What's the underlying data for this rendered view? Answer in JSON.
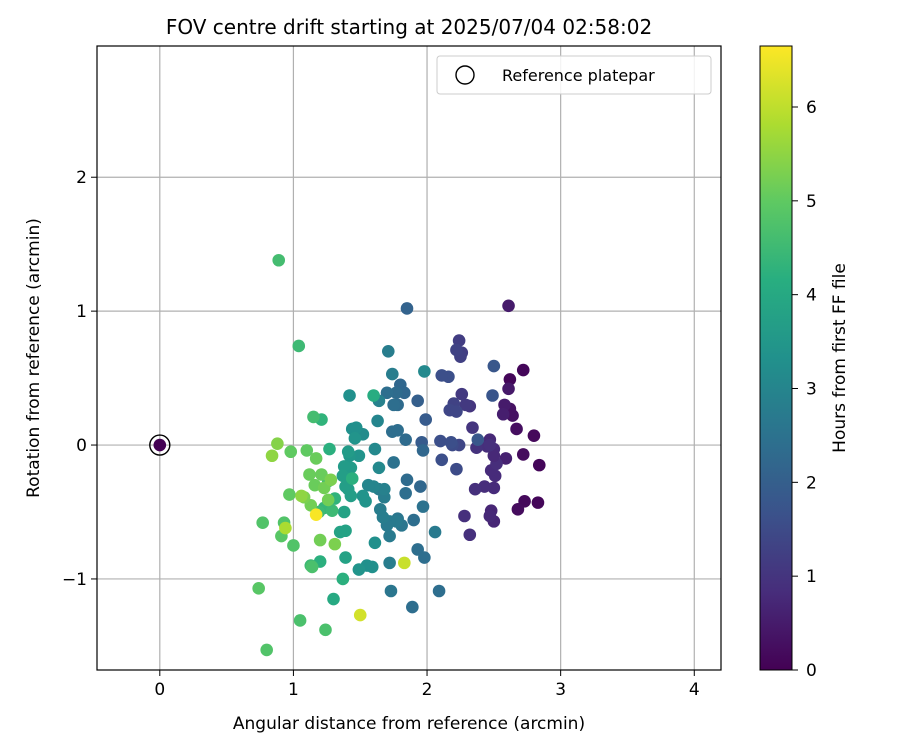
{
  "chart_data": {
    "type": "scatter",
    "title": "FOV centre drift starting at 2025/07/04 02:58:02",
    "xlabel": "Angular distance from reference (arcmin)",
    "ylabel": "Rotation from reference (arcmin)",
    "xlim": [
      -0.47,
      4.2
    ],
    "ylim": [
      -1.68,
      2.98
    ],
    "xticks": [
      0,
      1,
      2,
      3,
      4
    ],
    "xtick_labels": [
      "0",
      "1",
      "2",
      "3",
      "4"
    ],
    "yticks": [
      -1,
      0,
      1,
      2
    ],
    "ytick_labels": [
      "−1",
      "0",
      "1",
      "2"
    ],
    "grid": true,
    "legend": {
      "position": "top-right",
      "entries": [
        "Reference platepar"
      ]
    },
    "reference_point": {
      "x": 0,
      "y": 0,
      "c": 0
    },
    "colorbar": {
      "label": "Hours from first FF file",
      "range": [
        0,
        6.65
      ],
      "ticks": [
        0,
        1,
        2,
        3,
        4,
        5,
        6
      ],
      "tick_labels": [
        "0",
        "1",
        "2",
        "3",
        "4",
        "5",
        "6"
      ],
      "colormap": "viridis"
    },
    "series": [
      {
        "points": [
          {
            "x": 2.62,
            "y": 0.49,
            "c": 0.1
          },
          {
            "x": 2.72,
            "y": 0.56,
            "c": 0.1
          },
          {
            "x": 2.84,
            "y": -0.15,
            "c": 0.1
          },
          {
            "x": 2.83,
            "y": -0.43,
            "c": 0.1
          },
          {
            "x": 2.73,
            "y": -0.42,
            "c": 0.15
          },
          {
            "x": 2.68,
            "y": -0.48,
            "c": 0.2
          },
          {
            "x": 2.8,
            "y": 0.07,
            "c": 0.15
          },
          {
            "x": 2.72,
            "y": -0.07,
            "c": 0.2
          },
          {
            "x": 2.67,
            "y": 0.12,
            "c": 0.25
          },
          {
            "x": 2.64,
            "y": 0.22,
            "c": 0.3
          },
          {
            "x": 2.62,
            "y": 0.27,
            "c": 0.3
          },
          {
            "x": 2.61,
            "y": 1.04,
            "c": 0.5
          },
          {
            "x": 2.61,
            "y": 0.42,
            "c": 0.45
          },
          {
            "x": 2.58,
            "y": 0.3,
            "c": 0.5
          },
          {
            "x": 2.57,
            "y": 0.23,
            "c": 0.55
          },
          {
            "x": 2.59,
            "y": -0.1,
            "c": 0.6
          },
          {
            "x": 2.5,
            "y": -0.57,
            "c": 0.7
          },
          {
            "x": 2.48,
            "y": -0.49,
            "c": 0.7
          },
          {
            "x": 2.47,
            "y": -0.53,
            "c": 0.75
          },
          {
            "x": 2.5,
            "y": -0.32,
            "c": 0.8
          },
          {
            "x": 2.43,
            "y": -0.31,
            "c": 0.85
          },
          {
            "x": 2.36,
            "y": -0.33,
            "c": 0.9
          },
          {
            "x": 2.32,
            "y": -0.67,
            "c": 0.9
          },
          {
            "x": 2.28,
            "y": -0.53,
            "c": 0.9
          },
          {
            "x": 2.51,
            "y": -0.23,
            "c": 0.8
          },
          {
            "x": 2.48,
            "y": -0.19,
            "c": 0.8
          },
          {
            "x": 2.52,
            "y": -0.14,
            "c": 0.85
          },
          {
            "x": 2.5,
            "y": -0.03,
            "c": 0.8
          },
          {
            "x": 2.47,
            "y": 0.04,
            "c": 0.75
          },
          {
            "x": 2.5,
            "y": -0.08,
            "c": 0.75
          },
          {
            "x": 2.45,
            "y": -0.01,
            "c": 0.85
          },
          {
            "x": 2.47,
            "y": 0.0,
            "c": 0.9
          },
          {
            "x": 2.37,
            "y": -0.02,
            "c": 0.95
          },
          {
            "x": 2.34,
            "y": 0.13,
            "c": 1.0
          },
          {
            "x": 2.32,
            "y": 0.29,
            "c": 1.0
          },
          {
            "x": 2.29,
            "y": 0.3,
            "c": 1.1
          },
          {
            "x": 2.26,
            "y": 0.38,
            "c": 1.1
          },
          {
            "x": 2.24,
            "y": 0.78,
            "c": 1.2
          },
          {
            "x": 2.26,
            "y": 0.69,
            "c": 1.2
          },
          {
            "x": 2.25,
            "y": 0.66,
            "c": 1.25
          },
          {
            "x": 2.22,
            "y": 0.71,
            "c": 1.3
          },
          {
            "x": 2.2,
            "y": 0.31,
            "c": 1.3
          },
          {
            "x": 2.17,
            "y": 0.26,
            "c": 1.4
          },
          {
            "x": 2.22,
            "y": 0.25,
            "c": 1.4
          },
          {
            "x": 2.24,
            "y": 0.0,
            "c": 1.4
          },
          {
            "x": 2.19,
            "y": 0.0,
            "c": 1.5
          },
          {
            "x": 2.22,
            "y": -0.18,
            "c": 1.5
          },
          {
            "x": 2.16,
            "y": 0.51,
            "c": 1.6
          },
          {
            "x": 2.11,
            "y": 0.52,
            "c": 1.6
          },
          {
            "x": 2.1,
            "y": 0.03,
            "c": 1.6
          },
          {
            "x": 2.11,
            "y": -0.11,
            "c": 1.6
          },
          {
            "x": 2.18,
            "y": 0.02,
            "c": 1.6
          },
          {
            "x": 2.49,
            "y": 0.37,
            "c": 1.75
          },
          {
            "x": 2.5,
            "y": 0.59,
            "c": 1.8
          },
          {
            "x": 2.38,
            "y": 0.04,
            "c": 1.8
          },
          {
            "x": 1.99,
            "y": 0.19,
            "c": 1.9
          },
          {
            "x": 1.96,
            "y": 0.02,
            "c": 1.9
          },
          {
            "x": 1.93,
            "y": 0.33,
            "c": 2.0
          },
          {
            "x": 1.85,
            "y": 1.02,
            "c": 2.1
          },
          {
            "x": 1.8,
            "y": 0.45,
            "c": 2.2
          },
          {
            "x": 1.83,
            "y": 0.39,
            "c": 2.2
          },
          {
            "x": 1.77,
            "y": 0.39,
            "c": 2.3
          },
          {
            "x": 1.78,
            "y": 0.3,
            "c": 2.3
          },
          {
            "x": 1.75,
            "y": 0.3,
            "c": 2.4
          },
          {
            "x": 1.7,
            "y": 0.39,
            "c": 2.4
          },
          {
            "x": 1.84,
            "y": 0.04,
            "c": 2.3
          },
          {
            "x": 1.74,
            "y": 0.1,
            "c": 2.4
          },
          {
            "x": 1.78,
            "y": 0.11,
            "c": 2.4
          },
          {
            "x": 1.75,
            "y": -0.13,
            "c": 2.5
          },
          {
            "x": 1.85,
            "y": -0.26,
            "c": 2.3
          },
          {
            "x": 1.95,
            "y": -0.31,
            "c": 2.2
          },
          {
            "x": 1.97,
            "y": -0.04,
            "c": 2.2
          },
          {
            "x": 1.84,
            "y": -0.36,
            "c": 2.4
          },
          {
            "x": 1.9,
            "y": -0.56,
            "c": 2.4
          },
          {
            "x": 1.97,
            "y": -0.46,
            "c": 2.5
          },
          {
            "x": 1.89,
            "y": -1.21,
            "c": 2.4
          },
          {
            "x": 2.09,
            "y": -1.09,
            "c": 2.4
          },
          {
            "x": 1.98,
            "y": -0.84,
            "c": 2.4
          },
          {
            "x": 1.93,
            "y": -0.78,
            "c": 2.4
          },
          {
            "x": 1.73,
            "y": -1.09,
            "c": 2.6
          },
          {
            "x": 1.81,
            "y": -0.6,
            "c": 2.6
          },
          {
            "x": 1.78,
            "y": -0.55,
            "c": 2.6
          },
          {
            "x": 1.77,
            "y": -0.57,
            "c": 2.7
          },
          {
            "x": 1.72,
            "y": -0.57,
            "c": 2.7
          },
          {
            "x": 1.72,
            "y": -0.68,
            "c": 2.7
          },
          {
            "x": 1.7,
            "y": -0.6,
            "c": 2.7
          },
          {
            "x": 1.67,
            "y": -0.54,
            "c": 2.8
          },
          {
            "x": 1.65,
            "y": -0.48,
            "c": 2.8
          },
          {
            "x": 1.68,
            "y": -0.39,
            "c": 2.8
          },
          {
            "x": 1.64,
            "y": -0.33,
            "c": 2.8
          },
          {
            "x": 1.68,
            "y": -0.33,
            "c": 2.9
          },
          {
            "x": 1.6,
            "y": -0.31,
            "c": 3.0
          },
          {
            "x": 1.56,
            "y": -0.3,
            "c": 3.0
          },
          {
            "x": 1.72,
            "y": -0.88,
            "c": 2.8
          },
          {
            "x": 2.06,
            "y": -0.65,
            "c": 2.7
          },
          {
            "x": 1.71,
            "y": 0.7,
            "c": 2.8
          },
          {
            "x": 1.74,
            "y": 0.53,
            "c": 2.8
          },
          {
            "x": 1.64,
            "y": 0.33,
            "c": 2.9
          },
          {
            "x": 1.63,
            "y": 0.18,
            "c": 3.0
          },
          {
            "x": 1.61,
            "y": -0.03,
            "c": 3.1
          },
          {
            "x": 1.64,
            "y": -0.17,
            "c": 3.1
          },
          {
            "x": 1.98,
            "y": 0.55,
            "c": 3.1
          },
          {
            "x": 1.52,
            "y": 0.08,
            "c": 3.2
          },
          {
            "x": 1.44,
            "y": 0.12,
            "c": 3.3
          },
          {
            "x": 1.47,
            "y": 0.13,
            "c": 3.3
          },
          {
            "x": 1.46,
            "y": 0.05,
            "c": 3.4
          },
          {
            "x": 1.42,
            "y": 0.37,
            "c": 3.3
          },
          {
            "x": 1.49,
            "y": -0.08,
            "c": 3.4
          },
          {
            "x": 1.52,
            "y": -0.38,
            "c": 3.4
          },
          {
            "x": 1.54,
            "y": -0.42,
            "c": 3.4
          },
          {
            "x": 1.55,
            "y": -0.9,
            "c": 3.3
          },
          {
            "x": 1.59,
            "y": -0.91,
            "c": 3.3
          },
          {
            "x": 1.49,
            "y": -0.93,
            "c": 3.4
          },
          {
            "x": 1.61,
            "y": -0.73,
            "c": 3.3
          },
          {
            "x": 1.42,
            "y": -0.08,
            "c": 3.5
          },
          {
            "x": 1.41,
            "y": -0.05,
            "c": 3.6
          },
          {
            "x": 1.43,
            "y": -0.17,
            "c": 3.6
          },
          {
            "x": 1.38,
            "y": -0.16,
            "c": 3.6
          },
          {
            "x": 1.37,
            "y": -0.23,
            "c": 3.7
          },
          {
            "x": 1.39,
            "y": -0.31,
            "c": 3.7
          },
          {
            "x": 1.41,
            "y": -0.33,
            "c": 3.7
          },
          {
            "x": 1.43,
            "y": -0.38,
            "c": 3.7
          },
          {
            "x": 1.38,
            "y": -0.5,
            "c": 3.8
          },
          {
            "x": 1.39,
            "y": -0.64,
            "c": 3.8
          },
          {
            "x": 1.35,
            "y": -0.65,
            "c": 3.8
          },
          {
            "x": 1.39,
            "y": -0.84,
            "c": 3.8
          },
          {
            "x": 1.37,
            "y": -1.0,
            "c": 4.2
          },
          {
            "x": 1.3,
            "y": -1.15,
            "c": 4.0
          },
          {
            "x": 1.6,
            "y": 0.37,
            "c": 4.1
          },
          {
            "x": 1.44,
            "y": -0.25,
            "c": 4.2
          },
          {
            "x": 1.27,
            "y": -0.03,
            "c": 4.2
          },
          {
            "x": 1.21,
            "y": 0.19,
            "c": 4.3
          },
          {
            "x": 1.31,
            "y": -0.4,
            "c": 4.3
          },
          {
            "x": 1.23,
            "y": -0.47,
            "c": 4.4
          },
          {
            "x": 1.19,
            "y": -0.5,
            "c": 4.5
          },
          {
            "x": 1.29,
            "y": -0.49,
            "c": 4.5
          },
          {
            "x": 1.26,
            "y": -0.27,
            "c": 4.5
          },
          {
            "x": 1.2,
            "y": -0.87,
            "c": 4.2
          },
          {
            "x": 1.13,
            "y": -0.9,
            "c": 4.5
          },
          {
            "x": 1.04,
            "y": 0.74,
            "c": 4.5
          },
          {
            "x": 0.89,
            "y": 1.38,
            "c": 4.6
          },
          {
            "x": 1.15,
            "y": 0.21,
            "c": 4.6
          },
          {
            "x": 1.14,
            "y": -0.91,
            "c": 4.7
          },
          {
            "x": 1.24,
            "y": -1.38,
            "c": 4.7
          },
          {
            "x": 1.05,
            "y": -1.31,
            "c": 4.7
          },
          {
            "x": 0.8,
            "y": -1.53,
            "c": 4.8
          },
          {
            "x": 0.74,
            "y": -1.07,
            "c": 4.9
          },
          {
            "x": 0.77,
            "y": -0.58,
            "c": 4.8
          },
          {
            "x": 0.93,
            "y": -0.58,
            "c": 4.8
          },
          {
            "x": 1.0,
            "y": -0.75,
            "c": 4.8
          },
          {
            "x": 0.91,
            "y": -0.68,
            "c": 4.9
          },
          {
            "x": 0.97,
            "y": -0.37,
            "c": 5.0
          },
          {
            "x": 0.98,
            "y": -0.05,
            "c": 5.0
          },
          {
            "x": 1.1,
            "y": -0.04,
            "c": 5.0
          },
          {
            "x": 1.17,
            "y": -0.1,
            "c": 5.1
          },
          {
            "x": 1.12,
            "y": -0.22,
            "c": 5.1
          },
          {
            "x": 1.16,
            "y": -0.3,
            "c": 5.1
          },
          {
            "x": 1.21,
            "y": -0.22,
            "c": 5.1
          },
          {
            "x": 1.23,
            "y": -0.32,
            "c": 5.2
          },
          {
            "x": 1.26,
            "y": -0.41,
            "c": 5.2
          },
          {
            "x": 1.2,
            "y": -0.71,
            "c": 5.2
          },
          {
            "x": 1.31,
            "y": -0.74,
            "c": 5.3
          },
          {
            "x": 1.13,
            "y": -0.45,
            "c": 5.2
          },
          {
            "x": 1.08,
            "y": -0.39,
            "c": 5.3
          },
          {
            "x": 1.28,
            "y": -0.26,
            "c": 5.3
          },
          {
            "x": 0.88,
            "y": 0.01,
            "c": 5.4
          },
          {
            "x": 0.84,
            "y": -0.08,
            "c": 5.5
          },
          {
            "x": 1.06,
            "y": -0.38,
            "c": 5.5
          },
          {
            "x": 0.94,
            "y": -0.62,
            "c": 5.8
          },
          {
            "x": 1.5,
            "y": -1.27,
            "c": 6.2
          },
          {
            "x": 1.83,
            "y": -0.88,
            "c": 6.1
          },
          {
            "x": 1.17,
            "y": -0.52,
            "c": 6.6
          }
        ]
      }
    ]
  }
}
